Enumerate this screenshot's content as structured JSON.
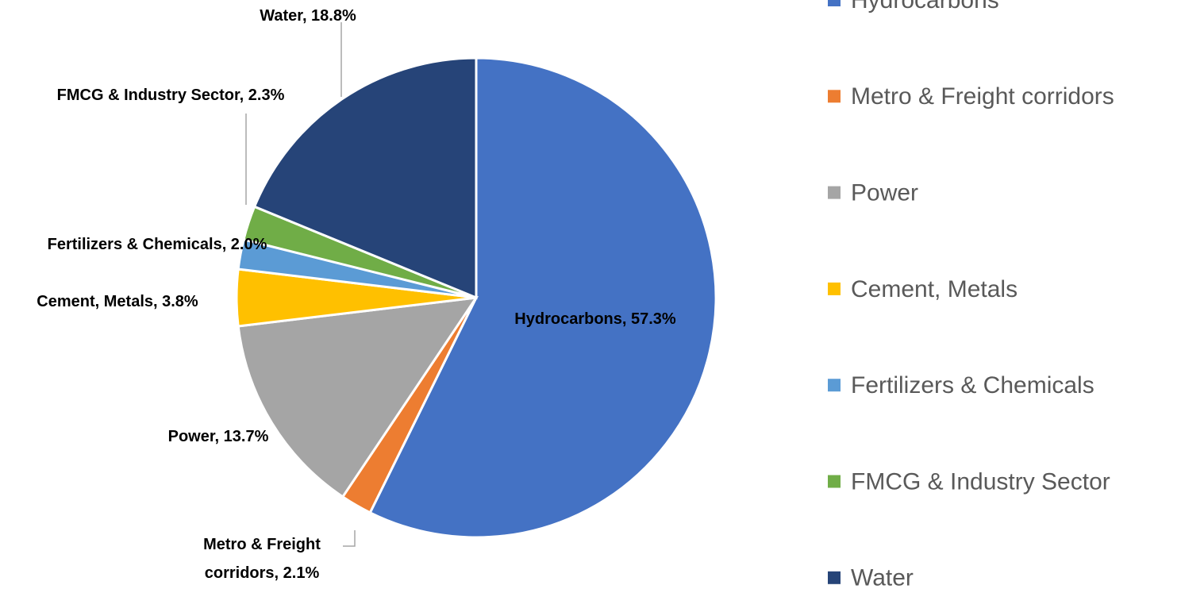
{
  "chart_data": {
    "type": "pie",
    "categories": [
      "Hydrocarbons",
      "Metro & Freight corridors",
      "Power",
      "Cement, Metals",
      "Fertilizers & Chemicals",
      "FMCG & Industry Sector",
      "Water"
    ],
    "values": [
      57.3,
      2.1,
      13.7,
      3.8,
      2.0,
      2.3,
      18.8
    ],
    "value_labels": [
      "Hydrocarbons, 57.3%",
      "Metro & Freight corridors, 2.1%",
      "Power, 13.7%",
      "Cement, Metals, 3.8%",
      "Fertilizers & Chemicals, 2.0%",
      "FMCG & Industry Sector, 2.3%",
      "Water, 18.8%"
    ],
    "colors": [
      "#4472c4",
      "#ed7d31",
      "#a5a5a5",
      "#ffc000",
      "#5b9bd5",
      "#70ad47",
      "#264478"
    ],
    "legend": "right"
  }
}
